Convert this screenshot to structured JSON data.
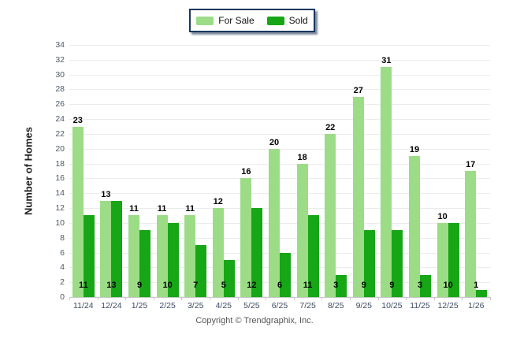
{
  "legend": {
    "border_color": "#17375E",
    "items": [
      {
        "label": "For Sale",
        "color": "#9CDC86"
      },
      {
        "label": "Sold",
        "color": "#16A616"
      }
    ]
  },
  "y_axis": {
    "title": "Number of Homes",
    "min": 0,
    "max": 34,
    "step": 2
  },
  "footer": {
    "copyright": "Copyright © Trendgraphix, Inc."
  },
  "chart_data": {
    "type": "bar",
    "title": "",
    "categories": [
      "11/24",
      "12/24",
      "1/25",
      "2/25",
      "3/25",
      "4/25",
      "5/25",
      "6/25",
      "7/25",
      "8/25",
      "9/25",
      "10/25",
      "11/25",
      "12/25",
      "1/26"
    ],
    "series": [
      {
        "name": "For Sale",
        "color": "#9CDC86",
        "values": [
          23,
          13,
          11,
          11,
          11,
          12,
          16,
          20,
          18,
          22,
          27,
          31,
          19,
          10,
          17
        ]
      },
      {
        "name": "Sold",
        "color": "#16A616",
        "values": [
          11,
          13,
          9,
          10,
          7,
          5,
          12,
          6,
          11,
          3,
          9,
          9,
          3,
          10,
          1
        ]
      }
    ],
    "xlabel": "",
    "ylabel": "Number of Homes",
    "ylim": [
      0,
      34
    ],
    "ytick_step": 2,
    "grid": true,
    "legend_position": "top-center",
    "value_label_placement": {
      "For Sale": "above-bar",
      "Sold": "at-base"
    }
  }
}
